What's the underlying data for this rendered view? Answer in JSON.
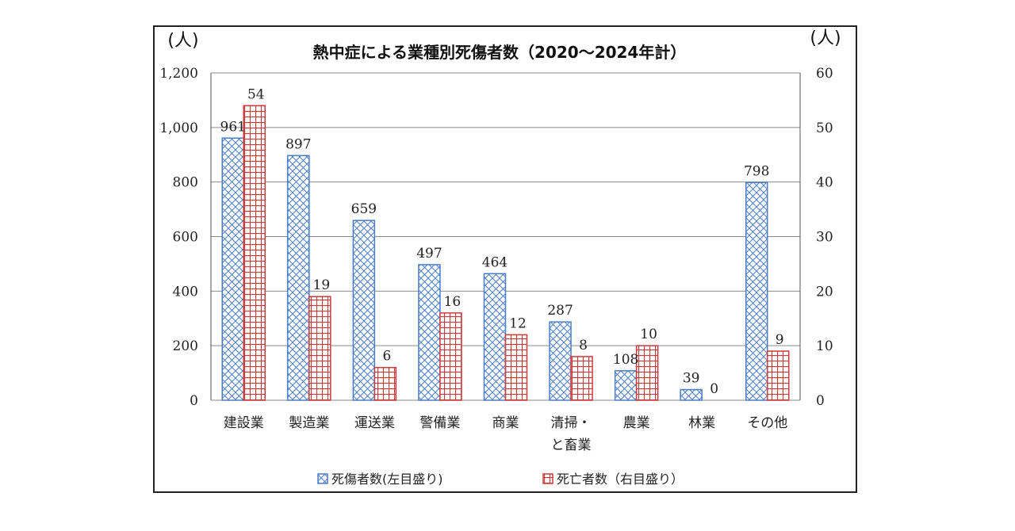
{
  "chart_data": {
    "type": "bar",
    "title": "熱中症による業種別死傷者数（2020～2024年計）",
    "left_unit": "(人)",
    "right_unit": "(人)",
    "categories": [
      [
        "建設業"
      ],
      [
        "製造業"
      ],
      [
        "運送業"
      ],
      [
        "警備業"
      ],
      [
        "商業"
      ],
      [
        "清掃・",
        "と畜業"
      ],
      [
        "農業"
      ],
      [
        "林業"
      ],
      [
        "その他"
      ]
    ],
    "series": [
      {
        "name": "死傷者数(左目盛り)",
        "axis": "left",
        "values": [
          961,
          897,
          659,
          497,
          464,
          287,
          108,
          39,
          798
        ],
        "color": "#4a7cc9"
      },
      {
        "name": "死亡者数（右目盛り）",
        "axis": "right",
        "values": [
          54,
          19,
          6,
          16,
          12,
          8,
          10,
          0,
          9
        ],
        "color": "#cc3b3b"
      }
    ],
    "ylim_left": [
      0,
      1200
    ],
    "yticks_left": [
      "0",
      "200",
      "400",
      "600",
      "800",
      "1,000",
      "1,200"
    ],
    "ylim_right": [
      0,
      60
    ],
    "yticks_right": [
      "0",
      "10",
      "20",
      "30",
      "40",
      "50",
      "60"
    ],
    "grid": true,
    "legend_position": "bottom"
  }
}
